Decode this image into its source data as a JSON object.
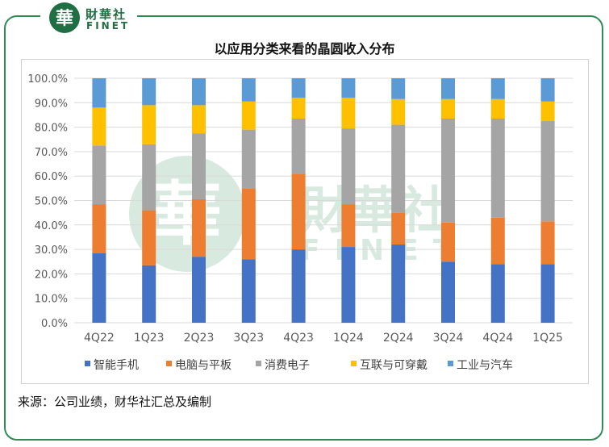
{
  "brand": {
    "seal_char": "華",
    "name_cn": "財華社",
    "name_en": "FINET",
    "color": "#1f6f43"
  },
  "chart_data": {
    "type": "bar",
    "stacked": true,
    "title": "以应用分类来看的晶圆收入分布",
    "categories": [
      "4Q22",
      "1Q23",
      "2Q23",
      "3Q23",
      "4Q23",
      "1Q24",
      "2Q24",
      "3Q24",
      "4Q24",
      "1Q25"
    ],
    "ylim": [
      0,
      100
    ],
    "yticks": [
      "0.0%",
      "10.0%",
      "20.0%",
      "30.0%",
      "40.0%",
      "50.0%",
      "60.0%",
      "70.0%",
      "80.0%",
      "90.0%",
      "100.0%"
    ],
    "grid": true,
    "legend_position": "bottom",
    "series": [
      {
        "name": "智能手机",
        "color": "#4472c4",
        "values": [
          28.5,
          23.5,
          27,
          26,
          30,
          31,
          32,
          25,
          24,
          24
        ]
      },
      {
        "name": "电脑与平板",
        "color": "#ed7d31",
        "values": [
          20,
          22.5,
          23.5,
          29,
          31,
          17.5,
          13,
          16,
          19,
          17.5
        ]
      },
      {
        "name": "消费电子",
        "color": "#a5a5a5",
        "values": [
          24,
          27,
          27,
          24,
          22.5,
          31,
          36,
          42.5,
          40.5,
          41
        ]
      },
      {
        "name": "互联与可穿戴",
        "color": "#ffc000",
        "values": [
          15.5,
          16,
          11.5,
          11.5,
          8.5,
          12.5,
          10.5,
          8,
          8,
          8
        ]
      },
      {
        "name": "工业与汽车",
        "color": "#5b9bd5",
        "values": [
          12,
          11,
          11,
          9.5,
          8,
          8,
          8.5,
          8.5,
          8.5,
          9.5
        ]
      }
    ]
  },
  "watermark": {
    "cn": "財華社",
    "en": "FINET"
  },
  "source": "来源：公司业绩，财华社汇总及编制"
}
